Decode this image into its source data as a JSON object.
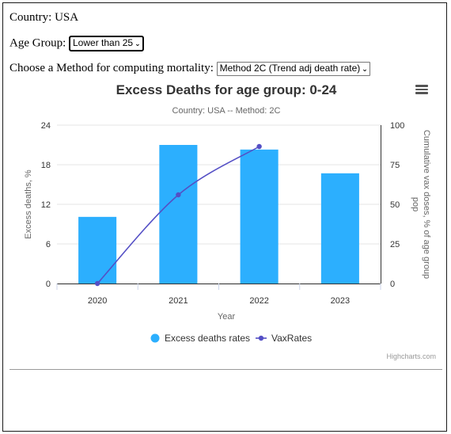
{
  "filters": {
    "country": "Country: USA",
    "age_label": "Age Group:",
    "age_value": "Lower than 25",
    "method_label": "Choose a Method for computing mortality:",
    "method_value": "Method 2C (Trend adj death rate)"
  },
  "credits": "Highcharts.com",
  "colors": {
    "bar": "#2caffe",
    "line": "#544fc5",
    "grid": "#e6e6e6",
    "axis": "#333333"
  },
  "icons": {
    "menu": "hamburger-menu-icon",
    "dropdown": "chevron-down-icon"
  },
  "chart_data": {
    "type": "bar",
    "title": "Excess Deaths for age group: 0-24",
    "subtitle": "Country: USA -- Method: 2C",
    "xlabel": "Year",
    "ylabel": "Excess deaths, %",
    "y2label": "Cumulative vax doses, % of age group pop",
    "categories": [
      "2020",
      "2021",
      "2022",
      "2023"
    ],
    "ylim": [
      0,
      24
    ],
    "yticks": [
      0,
      6,
      12,
      18,
      24
    ],
    "y2lim": [
      0,
      100
    ],
    "y2ticks": [
      0,
      25,
      50,
      75,
      100
    ],
    "grid": true,
    "legend_position": "bottom-center",
    "series": [
      {
        "name": "Excess deaths rates",
        "type": "bar",
        "axis": "left",
        "values": [
          10.1,
          21.0,
          20.3,
          16.7
        ]
      },
      {
        "name": "VaxRates",
        "type": "line",
        "axis": "right",
        "values": [
          0,
          56,
          86.5,
          null
        ]
      }
    ]
  }
}
